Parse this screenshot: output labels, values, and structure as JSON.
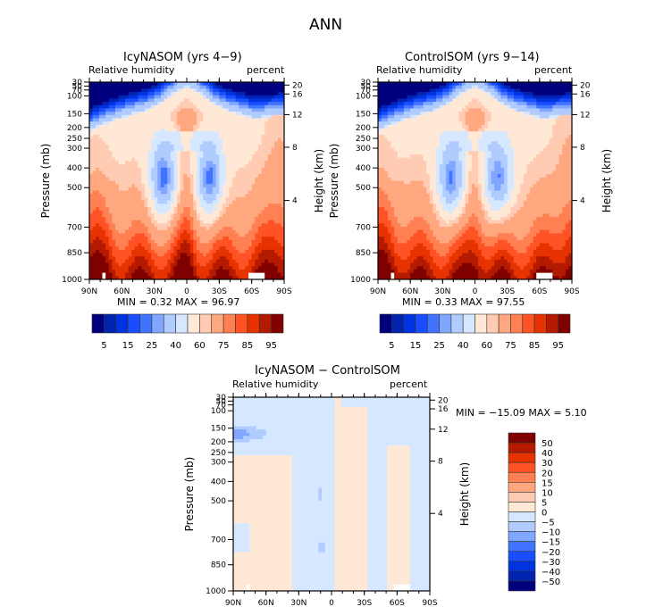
{
  "figure": {
    "title": "ANN"
  },
  "palettes": {
    "rh_colors": [
      "#00007f",
      "#0023b0",
      "#0033e0",
      "#1a4dff",
      "#4073ff",
      "#80a6ff",
      "#b0ccff",
      "#d6e8ff",
      "#ffe9d6",
      "#ffccb3",
      "#ffa880",
      "#ff8052",
      "#ff5326",
      "#e63300",
      "#b31a00",
      "#800000"
    ],
    "diff_colors": [
      "#00007f",
      "#0023b0",
      "#0033e0",
      "#1a4dff",
      "#4073ff",
      "#80a6ff",
      "#b0ccff",
      "#d6e8ff",
      "#ffe9d6",
      "#ffccb3",
      "#ffa880",
      "#ff8052",
      "#ff5326",
      "#e63300",
      "#b31a00",
      "#800000"
    ]
  },
  "chart_data": [
    {
      "type": "heatmap",
      "id": "icy",
      "title": "IcyNASOM (yrs 4−9)",
      "left_label": "Relative humidity",
      "right_label": "percent",
      "ylabel": "Pressure (mb)",
      "ylabel_right": "Height (km)",
      "xlabel": "",
      "x_ticks": [
        "90N",
        "60N",
        "30N",
        "0",
        "30S",
        "60S",
        "90S"
      ],
      "y_ticks": [
        "30",
        "50",
        "70",
        "100",
        "150",
        "200",
        "250",
        "300",
        "400",
        "500",
        "700",
        "850",
        "1000"
      ],
      "y_ticks_right": [
        "20",
        "16",
        "12",
        "8",
        "4"
      ],
      "stats": "MIN =    0.32   MAX =   96.97",
      "min": 0.32,
      "max": 96.97,
      "colorbar_labels": [
        "5",
        "15",
        "25",
        "40",
        "60",
        "75",
        "85",
        "95"
      ],
      "colorbar_levels": [
        5,
        10,
        15,
        20,
        25,
        30,
        40,
        50,
        60,
        65,
        75,
        80,
        85,
        90,
        95
      ]
    },
    {
      "type": "heatmap",
      "id": "ctrl",
      "title": "ControlSOM (yrs 9−14)",
      "left_label": "Relative humidity",
      "right_label": "percent",
      "ylabel": "Pressure (mb)",
      "ylabel_right": "Height (km)",
      "xlabel": "",
      "x_ticks": [
        "90N",
        "60N",
        "30N",
        "0",
        "30S",
        "60S",
        "90S"
      ],
      "y_ticks": [
        "30",
        "50",
        "70",
        "100",
        "150",
        "200",
        "250",
        "300",
        "400",
        "500",
        "700",
        "850",
        "1000"
      ],
      "y_ticks_right": [
        "20",
        "16",
        "12",
        "8",
        "4"
      ],
      "stats": "MIN =    0.33   MAX =   97.55",
      "min": 0.33,
      "max": 97.55,
      "colorbar_labels": [
        "5",
        "15",
        "25",
        "40",
        "60",
        "75",
        "85",
        "95"
      ],
      "colorbar_levels": [
        5,
        10,
        15,
        20,
        25,
        30,
        40,
        50,
        60,
        65,
        75,
        80,
        85,
        90,
        95
      ]
    },
    {
      "type": "heatmap",
      "id": "diff",
      "title": "IcyNASOM − ControlSOM",
      "left_label": "Relative humidity",
      "right_label": "percent",
      "ylabel": "Pressure (mb)",
      "ylabel_right": "Height (km)",
      "xlabel": "",
      "x_ticks": [
        "90N",
        "60N",
        "30N",
        "0",
        "30S",
        "60S",
        "90S"
      ],
      "y_ticks": [
        "30",
        "50",
        "70",
        "100",
        "150",
        "200",
        "250",
        "300",
        "400",
        "500",
        "700",
        "850",
        "1000"
      ],
      "y_ticks_right": [
        "20",
        "16",
        "12",
        "8",
        "4"
      ],
      "stats": "MIN = −15.09   MAX =    5.10",
      "min": -15.09,
      "max": 5.1,
      "colorbar_labels": [
        "50",
        "40",
        "30",
        "20",
        "15",
        "10",
        "5",
        "0",
        "−5",
        "−10",
        "−15",
        "−20",
        "−30",
        "−40",
        "−50"
      ],
      "colorbar_levels": [
        50,
        40,
        30,
        20,
        15,
        10,
        5,
        0,
        -5,
        -10,
        -15,
        -20,
        -30,
        -40,
        -50
      ]
    }
  ]
}
